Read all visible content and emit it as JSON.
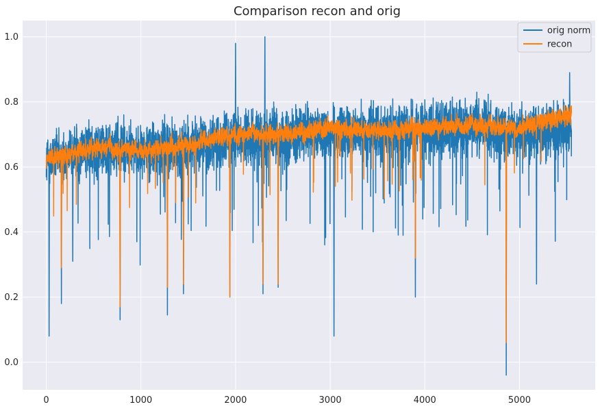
{
  "chart_data": {
    "type": "line",
    "title": "Comparison recon and orig",
    "xlabel": "",
    "ylabel": "",
    "xlim": [
      -250,
      5800
    ],
    "ylim": [
      -0.085,
      1.05
    ],
    "x_ticks": [
      0,
      1000,
      2000,
      3000,
      4000,
      5000
    ],
    "y_ticks": [
      0.0,
      0.2,
      0.4,
      0.6,
      0.8,
      1.0
    ],
    "x_tick_labels": [
      "0",
      "1000",
      "2000",
      "3000",
      "4000",
      "5000"
    ],
    "y_tick_labels": [
      "0.0",
      "0.2",
      "0.4",
      "0.6",
      "0.8",
      "1.0"
    ],
    "grid": true,
    "legend_position": "top-right",
    "n_points": 5550,
    "series": [
      {
        "name": "orig norm",
        "color": "#1f77b4",
        "description_level": [
          {
            "x": 0,
            "y": 0.62
          },
          {
            "x": 500,
            "y": 0.66
          },
          {
            "x": 1000,
            "y": 0.65
          },
          {
            "x": 1500,
            "y": 0.66
          },
          {
            "x": 2000,
            "y": 0.69
          },
          {
            "x": 2500,
            "y": 0.69
          },
          {
            "x": 3000,
            "y": 0.71
          },
          {
            "x": 3500,
            "y": 0.7
          },
          {
            "x": 4000,
            "y": 0.71
          },
          {
            "x": 4500,
            "y": 0.72
          },
          {
            "x": 5000,
            "y": 0.71
          },
          {
            "x": 5550,
            "y": 0.72
          }
        ],
        "spikes": [
          {
            "x": 30,
            "y": 0.08
          },
          {
            "x": 160,
            "y": 0.18
          },
          {
            "x": 280,
            "y": 0.31
          },
          {
            "x": 780,
            "y": 0.13
          },
          {
            "x": 1280,
            "y": 0.145
          },
          {
            "x": 1450,
            "y": 0.21
          },
          {
            "x": 1940,
            "y": 0.2
          },
          {
            "x": 2000,
            "y": 0.98
          },
          {
            "x": 2290,
            "y": 0.21
          },
          {
            "x": 2310,
            "y": 1.0
          },
          {
            "x": 2450,
            "y": 0.23
          },
          {
            "x": 3040,
            "y": 0.08
          },
          {
            "x": 3900,
            "y": 0.2
          },
          {
            "x": 4860,
            "y": -0.04
          },
          {
            "x": 5180,
            "y": 0.24
          },
          {
            "x": 5530,
            "y": 0.89
          }
        ]
      },
      {
        "name": "recon",
        "color": "#ff7f0e",
        "description_level": [
          {
            "x": 0,
            "y": 0.62
          },
          {
            "x": 500,
            "y": 0.66
          },
          {
            "x": 1000,
            "y": 0.65
          },
          {
            "x": 1500,
            "y": 0.67
          },
          {
            "x": 2000,
            "y": 0.7
          },
          {
            "x": 2500,
            "y": 0.7
          },
          {
            "x": 3000,
            "y": 0.72
          },
          {
            "x": 3500,
            "y": 0.71
          },
          {
            "x": 4000,
            "y": 0.72
          },
          {
            "x": 4500,
            "y": 0.73
          },
          {
            "x": 5000,
            "y": 0.72
          },
          {
            "x": 5550,
            "y": 0.76
          }
        ],
        "spikes": [
          {
            "x": 160,
            "y": 0.29
          },
          {
            "x": 780,
            "y": 0.17
          },
          {
            "x": 1280,
            "y": 0.23
          },
          {
            "x": 1450,
            "y": 0.24
          },
          {
            "x": 1940,
            "y": 0.2
          },
          {
            "x": 2290,
            "y": 0.24
          },
          {
            "x": 2450,
            "y": 0.24
          },
          {
            "x": 3900,
            "y": 0.32
          },
          {
            "x": 4860,
            "y": 0.06
          }
        ]
      }
    ]
  }
}
